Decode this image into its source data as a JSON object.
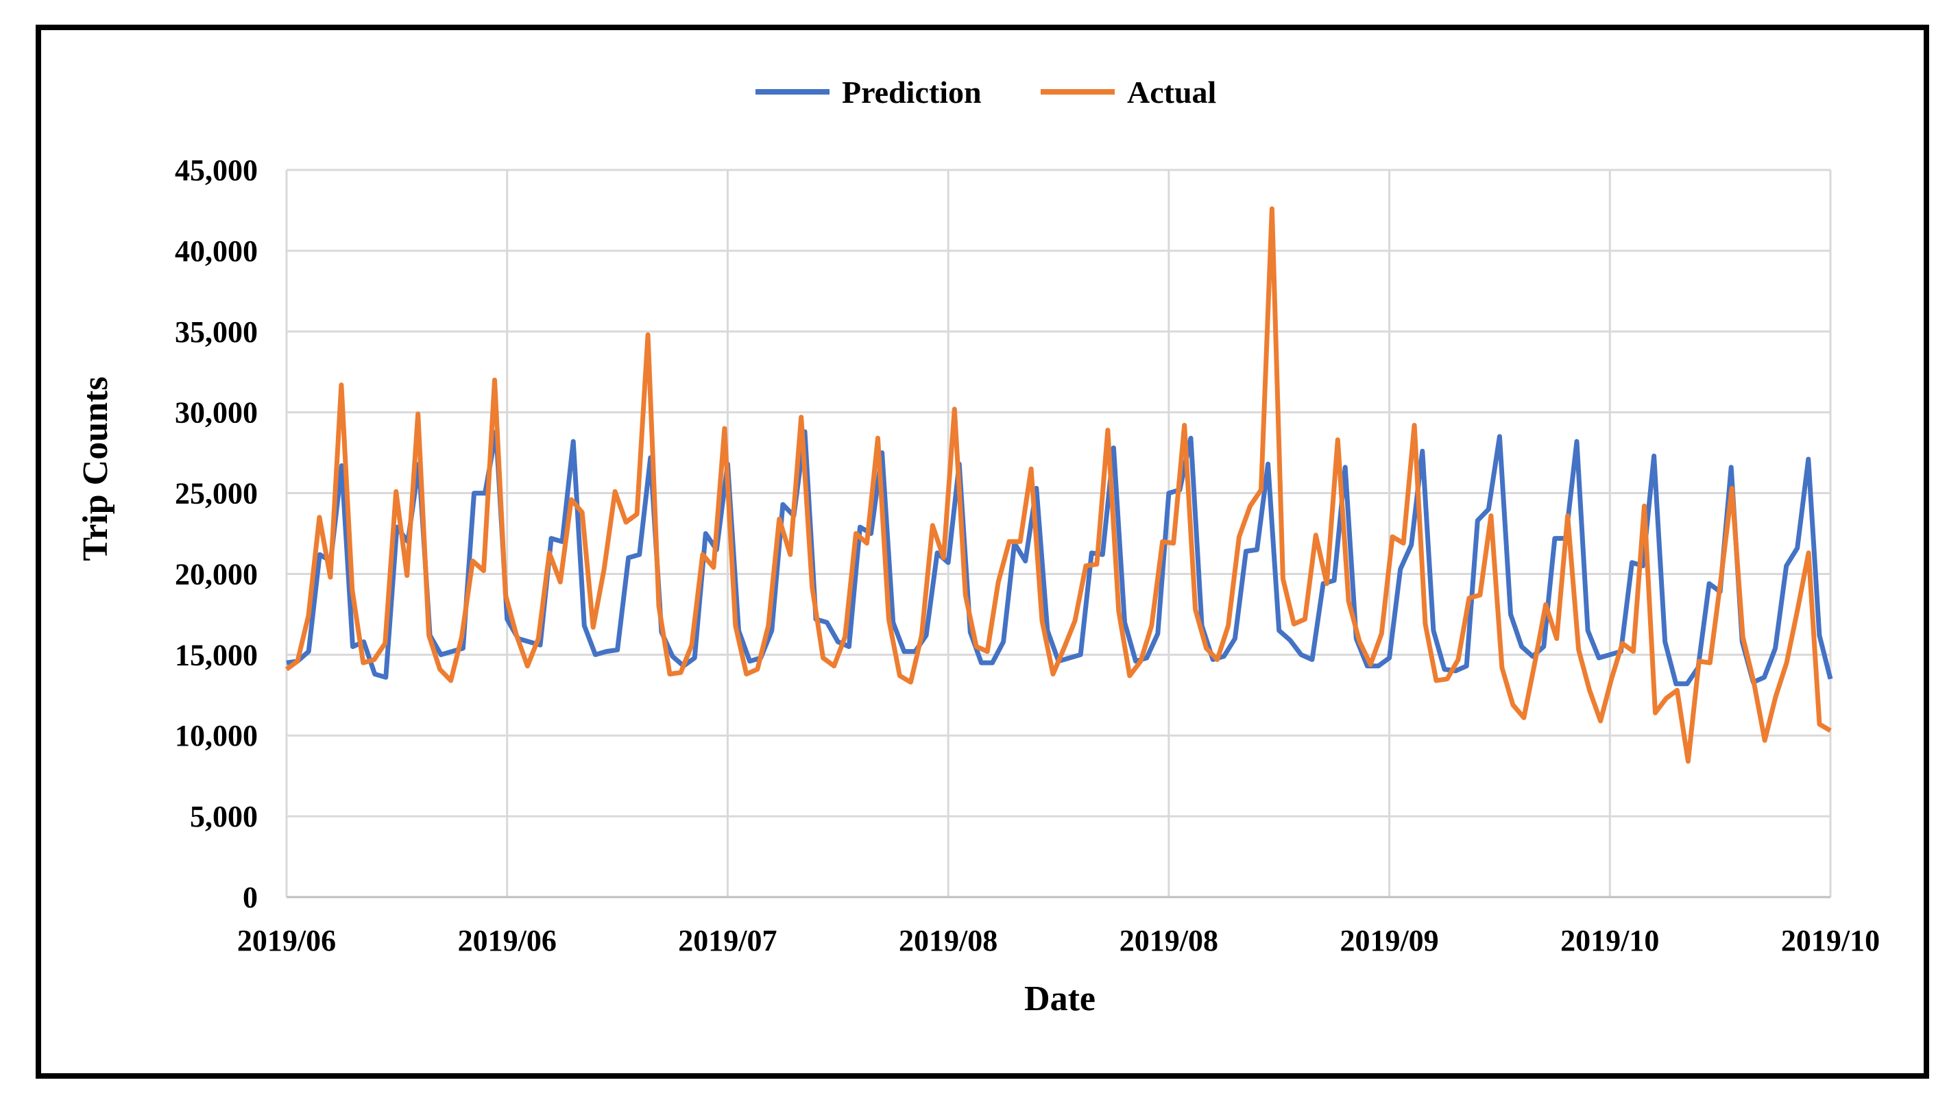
{
  "chart_data": {
    "type": "line",
    "title": "",
    "xlabel": "Date",
    "ylabel": "Trip Counts",
    "ylim": [
      0,
      45000
    ],
    "yticks": [
      "0",
      "5,000",
      "10,000",
      "15,000",
      "20,000",
      "25,000",
      "30,000",
      "35,000",
      "40,000",
      "45,000"
    ],
    "ytick_values": [
      0,
      5000,
      10000,
      15000,
      20000,
      25000,
      30000,
      35000,
      40000,
      45000
    ],
    "xticks": [
      "2019/06",
      "2019/06",
      "2019/07",
      "2019/08",
      "2019/08",
      "2019/09",
      "2019/10",
      "2019/10"
    ],
    "grid": true,
    "legend_position": "top-center",
    "series": [
      {
        "name": "Prediction",
        "color": "#4472C4",
        "values": [
          14500,
          14600,
          15200,
          21200,
          20800,
          26700,
          15500,
          15800,
          13800,
          13600,
          22900,
          22000,
          26800,
          16200,
          15000,
          15200,
          15400,
          25000,
          25000,
          28800,
          17200,
          16000,
          15800,
          15600,
          22200,
          22000,
          28200,
          16800,
          15000,
          15200,
          15300,
          21000,
          21200,
          27200,
          16400,
          14900,
          14300,
          14800,
          22500,
          21500,
          26800,
          16500,
          14600,
          14800,
          16500,
          24300,
          23600,
          28800,
          17200,
          17000,
          15800,
          15500,
          22900,
          22500,
          27500,
          17000,
          15200,
          15200,
          16200,
          21300,
          20700,
          26800,
          16400,
          14500,
          14500,
          15800,
          21900,
          20800,
          25300,
          16500,
          14600,
          14800,
          15000,
          21300,
          21200,
          27800,
          17000,
          14600,
          14800,
          16300,
          25000,
          25200,
          28400,
          16800,
          14700,
          14900,
          16000,
          21400,
          21500,
          26800,
          16500,
          15900,
          15000,
          14700,
          19400,
          19600,
          26600,
          16000,
          14300,
          14300,
          14800,
          20300,
          21800,
          27600,
          16500,
          14100,
          14000,
          14300,
          23300,
          24000,
          28500,
          17500,
          15500,
          14900,
          15500,
          22200,
          22200,
          28200,
          16500,
          14800,
          15000,
          15200,
          20700,
          20500,
          27300,
          15800,
          13200,
          13200,
          14200,
          19400,
          18900,
          26600,
          15800,
          13300,
          13600,
          15400,
          20500,
          21600,
          27100,
          16200,
          13500
        ],
        "markers": false
      },
      {
        "name": "Actual",
        "color": "#ED7D31",
        "values": [
          14100,
          14600,
          17400,
          23500,
          19800,
          31700,
          19000,
          14500,
          14700,
          15700,
          25100,
          19900,
          29900,
          16200,
          14100,
          13400,
          16100,
          20800,
          20200,
          32000,
          18700,
          16200,
          14300,
          16000,
          21300,
          19500,
          24600,
          23800,
          16700,
          20300,
          25100,
          23200,
          23700,
          34800,
          18000,
          13800,
          13900,
          15600,
          21200,
          20400,
          29000,
          16800,
          13800,
          14100,
          16800,
          23400,
          21200,
          29700,
          19200,
          14800,
          14300,
          16100,
          22500,
          21900,
          28400,
          17200,
          13700,
          13300,
          16200,
          23000,
          21000,
          30200,
          18700,
          15500,
          15200,
          19500,
          22000,
          22000,
          26500,
          17100,
          13800,
          15400,
          17100,
          20500,
          20600,
          28900,
          17700,
          13700,
          14600,
          16800,
          22000,
          21900,
          29200,
          17800,
          15400,
          14700,
          16800,
          22300,
          24200,
          25200,
          42600,
          19700,
          16900,
          17200,
          22400,
          19400,
          28300,
          18300,
          15800,
          14400,
          16300,
          22300,
          21900,
          29200,
          16900,
          13400,
          13500,
          14700,
          18500,
          18700,
          23600,
          14200,
          11900,
          11100,
          14500,
          18100,
          16000,
          23600,
          15300,
          12800,
          10900,
          13500,
          15700,
          15200,
          24200,
          11400,
          12300,
          12800,
          8400,
          14600,
          14500,
          19700,
          25300,
          16100,
          13300,
          9700,
          12400,
          14500,
          17800,
          21300,
          10700,
          10300
        ],
        "markers": false
      }
    ]
  }
}
